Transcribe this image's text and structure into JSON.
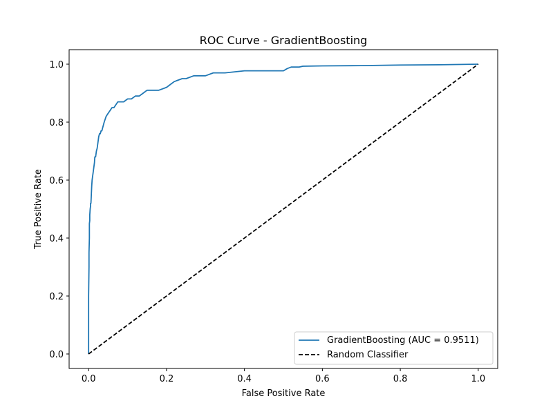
{
  "chart_data": {
    "type": "line",
    "title": "ROC Curve - GradientBoosting",
    "xlabel": "False Positive Rate",
    "ylabel": "True Positive Rate",
    "xlim": [
      -0.05,
      1.05
    ],
    "ylim": [
      -0.05,
      1.05
    ],
    "xticks": [
      0.0,
      0.2,
      0.4,
      0.6,
      0.8,
      1.0
    ],
    "yticks": [
      0.0,
      0.2,
      0.4,
      0.6,
      0.8,
      1.0
    ],
    "xtick_labels": [
      "0.0",
      "0.2",
      "0.4",
      "0.6",
      "0.8",
      "1.0"
    ],
    "ytick_labels": [
      "0.0",
      "0.2",
      "0.4",
      "0.6",
      "0.8",
      "1.0"
    ],
    "grid": false,
    "legend_position": "lower-right",
    "series": [
      {
        "name": "GradientBoosting (AUC = 0.9511)",
        "color": "#1f77b4",
        "style": "solid",
        "x": [
          0.0,
          0.0,
          0.001,
          0.001,
          0.002,
          0.002,
          0.003,
          0.003,
          0.004,
          0.005,
          0.005,
          0.006,
          0.007,
          0.008,
          0.009,
          0.01,
          0.011,
          0.012,
          0.013,
          0.014,
          0.015,
          0.016,
          0.018,
          0.02,
          0.022,
          0.024,
          0.026,
          0.028,
          0.03,
          0.032,
          0.034,
          0.036,
          0.038,
          0.04,
          0.045,
          0.05,
          0.055,
          0.06,
          0.065,
          0.07,
          0.075,
          0.08,
          0.085,
          0.09,
          0.1,
          0.11,
          0.12,
          0.13,
          0.14,
          0.15,
          0.16,
          0.18,
          0.2,
          0.21,
          0.22,
          0.24,
          0.25,
          0.27,
          0.3,
          0.32,
          0.35,
          0.4,
          0.45,
          0.5,
          0.51,
          0.52,
          0.54,
          0.55,
          0.6,
          0.7,
          0.8,
          0.9,
          1.0
        ],
        "y": [
          0.0,
          0.2,
          0.3,
          0.35,
          0.4,
          0.45,
          0.46,
          0.48,
          0.5,
          0.51,
          0.52,
          0.52,
          0.55,
          0.58,
          0.6,
          0.61,
          0.62,
          0.63,
          0.64,
          0.65,
          0.66,
          0.68,
          0.68,
          0.7,
          0.71,
          0.73,
          0.75,
          0.76,
          0.76,
          0.77,
          0.77,
          0.78,
          0.79,
          0.8,
          0.82,
          0.83,
          0.84,
          0.85,
          0.85,
          0.86,
          0.87,
          0.87,
          0.87,
          0.87,
          0.88,
          0.88,
          0.89,
          0.89,
          0.9,
          0.91,
          0.91,
          0.91,
          0.92,
          0.93,
          0.94,
          0.95,
          0.95,
          0.96,
          0.96,
          0.97,
          0.97,
          0.977,
          0.977,
          0.977,
          0.985,
          0.99,
          0.99,
          0.993,
          0.994,
          0.995,
          0.997,
          0.998,
          1.0
        ]
      },
      {
        "name": "Random Classifier",
        "color": "#000000",
        "style": "dashed",
        "x": [
          0.0,
          1.0
        ],
        "y": [
          0.0,
          1.0
        ]
      }
    ]
  }
}
